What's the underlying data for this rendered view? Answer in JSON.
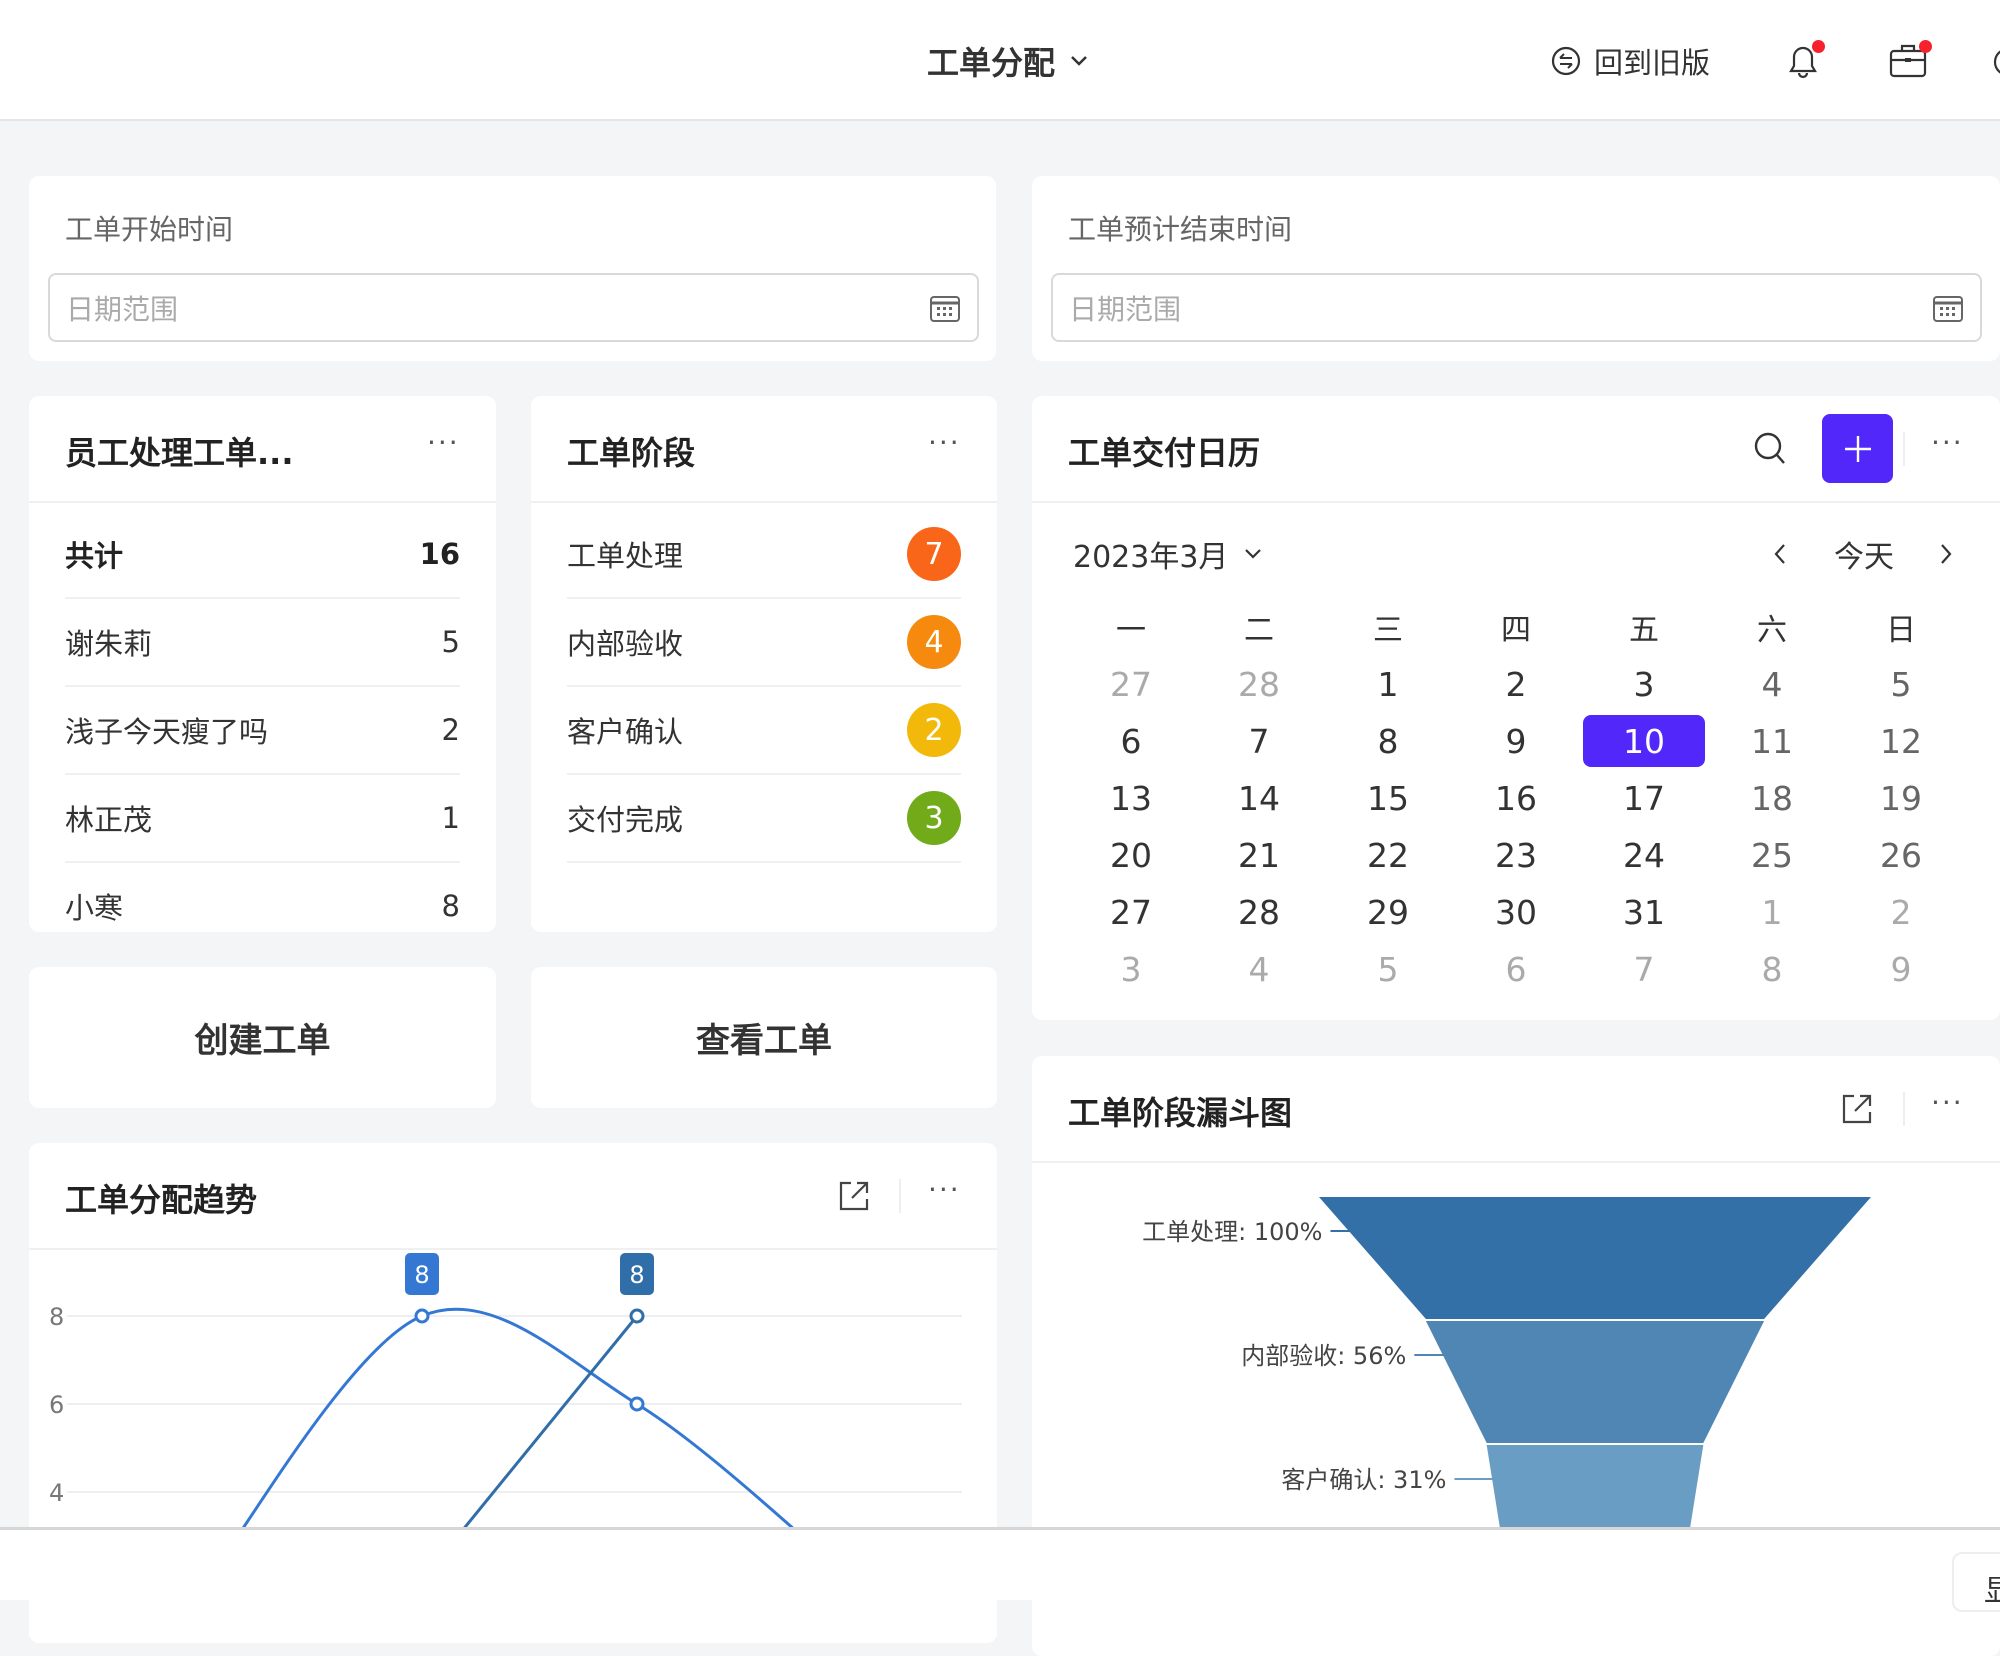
{
  "header": {
    "title": "工单分配",
    "old_version": "回到旧版",
    "icons": [
      "chevron-down-icon",
      "switch-icon",
      "bell-icon",
      "briefcase-icon"
    ],
    "notify_color": "#f5222d"
  },
  "date_filters": [
    {
      "label": "工单开始时间",
      "placeholder": "日期范围"
    },
    {
      "label": "工单预计结束时间",
      "placeholder": "日期范围"
    }
  ],
  "staff": {
    "title": "员工处理工单...",
    "rows": [
      {
        "name": "共计",
        "value": "16"
      },
      {
        "name": "谢朱莉",
        "value": "5"
      },
      {
        "name": "浅子今天瘦了吗",
        "value": "2"
      },
      {
        "name": "林正茂",
        "value": "1"
      },
      {
        "name": "小寒",
        "value": "8"
      }
    ]
  },
  "stages": {
    "title": "工单阶段",
    "rows": [
      {
        "name": "工单处理",
        "value": "7",
        "color": "#fa6619"
      },
      {
        "name": "内部验收",
        "value": "4",
        "color": "#f58a0e"
      },
      {
        "name": "客户确认",
        "value": "2",
        "color": "#f2b90b"
      },
      {
        "name": "交付完成",
        "value": "3",
        "color": "#72ab1a"
      }
    ]
  },
  "actions": {
    "create": "创建工单",
    "view": "查看工单"
  },
  "calendar": {
    "title": "工单交付日历",
    "month": "2023年3月",
    "today": "今天",
    "accent": "#5128f9",
    "selected": "10",
    "weekdays": [
      "一",
      "二",
      "三",
      "四",
      "五",
      "六",
      "日"
    ],
    "weeks": [
      [
        [
          "27",
          0
        ],
        [
          "28",
          0
        ],
        [
          "1",
          1
        ],
        [
          "2",
          1
        ],
        [
          "3",
          1
        ],
        [
          "4",
          1
        ],
        [
          "5",
          1
        ]
      ],
      [
        [
          "6",
          1
        ],
        [
          "7",
          1
        ],
        [
          "8",
          1
        ],
        [
          "9",
          1
        ],
        [
          "10",
          1
        ],
        [
          "11",
          1
        ],
        [
          "12",
          1
        ]
      ],
      [
        [
          "13",
          1
        ],
        [
          "14",
          1
        ],
        [
          "15",
          1
        ],
        [
          "16",
          1
        ],
        [
          "17",
          1
        ],
        [
          "18",
          1
        ],
        [
          "19",
          1
        ]
      ],
      [
        [
          "20",
          1
        ],
        [
          "21",
          1
        ],
        [
          "22",
          1
        ],
        [
          "23",
          1
        ],
        [
          "24",
          1
        ],
        [
          "25",
          1
        ],
        [
          "26",
          1
        ]
      ],
      [
        [
          "27",
          1
        ],
        [
          "28",
          1
        ],
        [
          "29",
          1
        ],
        [
          "30",
          1
        ],
        [
          "31",
          1
        ],
        [
          "1",
          0
        ],
        [
          "2",
          0
        ]
      ],
      [
        [
          "3",
          0
        ],
        [
          "4",
          0
        ],
        [
          "5",
          0
        ],
        [
          "6",
          0
        ],
        [
          "7",
          0
        ],
        [
          "8",
          0
        ],
        [
          "9",
          0
        ]
      ]
    ]
  },
  "trend": {
    "title": "工单分配趋势"
  },
  "funnel": {
    "title": "工单阶段漏斗图"
  },
  "footer": {
    "button": "显"
  },
  "chart_data": [
    {
      "type": "line",
      "title": "工单分配趋势",
      "ylim": [
        0,
        9
      ],
      "yticks": [
        "8",
        "6",
        "4"
      ],
      "grid": true,
      "series": [
        {
          "values": [
            2,
            8,
            6,
            2
          ],
          "color": "#3478d4",
          "smooth": true,
          "labels": {
            "1": "8"
          }
        },
        {
          "values": [
            null,
            2,
            8
          ],
          "color": "#2f6ea8",
          "smooth": false,
          "labels": {
            "2": "8"
          }
        }
      ]
    },
    {
      "type": "funnel",
      "title": "工单阶段漏斗图",
      "stages": [
        {
          "name": "工单处理",
          "percent": 100,
          "label": "工单处理: 100%",
          "color": "#3370a7"
        },
        {
          "name": "内部验收",
          "percent": 56,
          "label": "内部验收: 56%",
          "color": "#4f86b4"
        },
        {
          "name": "客户确认",
          "percent": 31,
          "label": "客户确认: 31%",
          "color": "#6a9dc3"
        }
      ]
    }
  ]
}
